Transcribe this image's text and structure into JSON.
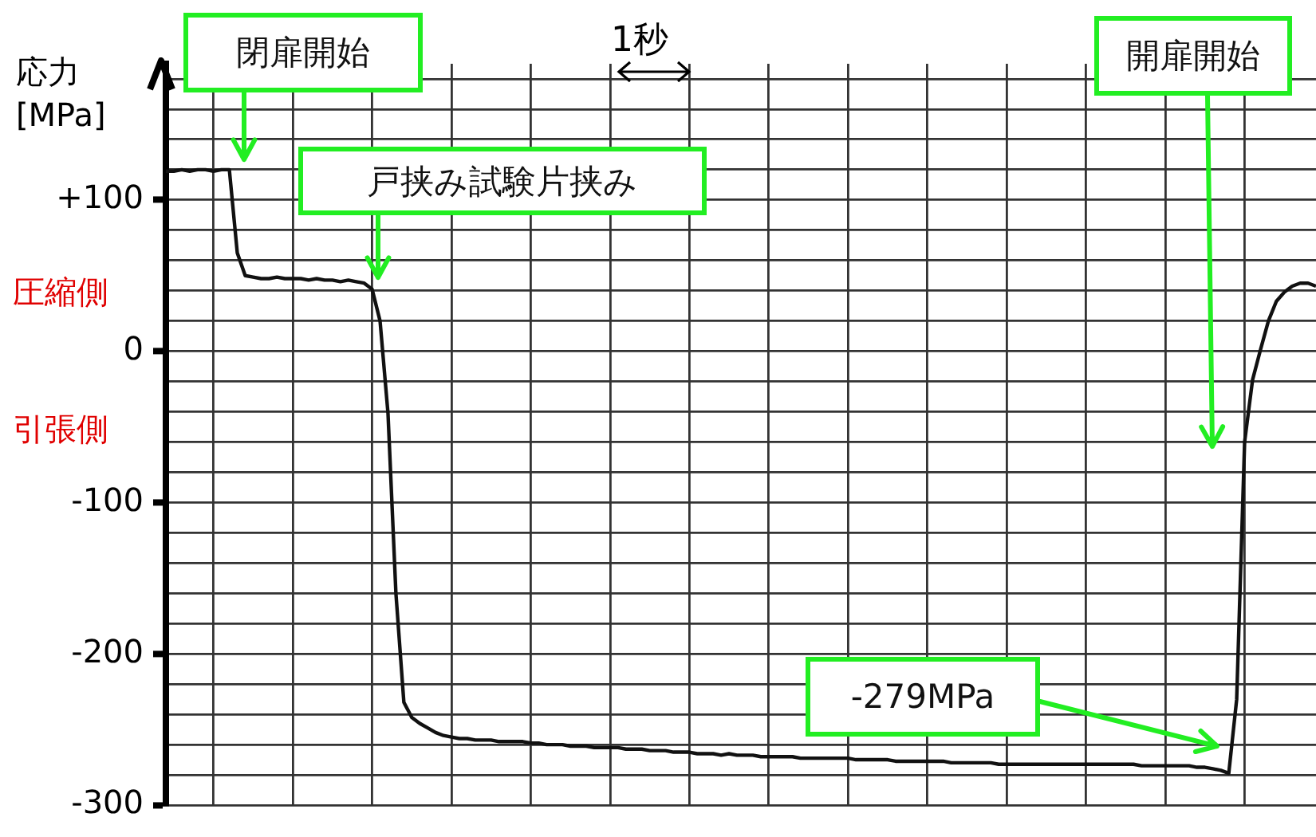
{
  "chart_data": {
    "type": "line",
    "ylabel": "応力\n[MPa]",
    "annotations": [
      "閉扉開始",
      "戸挟み試験片挟み",
      "開扉開始",
      "-279MPa",
      "1秒",
      "圧縮側",
      "引張側"
    ],
    "categories": [
      null,
      null,
      null,
      null,
      null,
      null,
      null,
      null,
      null,
      null,
      null,
      null,
      null,
      null,
      null,
      null,
      null,
      null,
      null,
      null,
      null,
      null,
      null,
      null,
      null,
      null,
      null,
      null,
      null,
      null,
      null,
      null,
      null,
      null,
      null,
      null,
      null,
      null,
      null,
      null,
      null,
      null,
      null,
      null,
      null,
      null,
      null,
      null,
      null,
      null,
      null,
      null,
      null,
      null,
      null,
      null,
      null,
      null,
      null,
      null,
      null,
      null,
      null,
      null,
      null,
      null,
      null,
      null,
      null,
      null,
      null,
      null,
      null,
      null,
      null,
      null,
      null,
      null,
      null,
      null,
      null,
      null,
      null,
      null,
      null,
      null,
      null,
      null,
      null,
      null,
      null,
      null,
      null,
      null,
      null,
      null,
      null,
      null,
      null,
      null,
      null,
      null,
      null,
      null,
      null,
      null,
      null,
      null,
      null,
      null,
      null,
      null,
      null,
      null,
      null,
      null,
      null,
      null,
      null,
      null,
      null,
      null,
      null,
      null,
      null,
      null,
      null,
      null,
      null,
      null,
      null,
      null,
      null,
      null,
      null,
      null,
      null,
      null,
      null,
      null,
      null,
      null,
      null,
      null,
      null,
      null
    ],
    "series": [
      {
        "color": "#111111",
        "values": [
          119,
          119,
          120,
          119,
          120,
          120,
          119,
          120,
          120,
          65,
          50,
          49,
          48,
          48,
          49,
          48,
          48,
          48,
          47,
          48,
          47,
          47,
          46,
          47,
          46,
          45,
          41,
          20,
          -41,
          -160,
          -232,
          -242,
          -246,
          -249,
          -252,
          -254,
          -255,
          -256,
          -256,
          -257,
          -257,
          -257,
          -258,
          -258,
          -258,
          -258,
          -259,
          -259,
          -260,
          -260,
          -260,
          -261,
          -261,
          -261,
          -262,
          -262,
          -262,
          -262,
          -263,
          -263,
          -263,
          -264,
          -264,
          -264,
          -265,
          -265,
          -265,
          -266,
          -266,
          -266,
          -267,
          -266,
          -267,
          -267,
          -267,
          -268,
          -268,
          -268,
          -268,
          -268,
          -269,
          -269,
          -269,
          -269,
          -269,
          -269,
          -269,
          -270,
          -270,
          -270,
          -270,
          -270,
          -271,
          -271,
          -271,
          -271,
          -271,
          -271,
          -271,
          -272,
          -272,
          -272,
          -272,
          -272,
          -272,
          -273,
          -273,
          -273,
          -273,
          -273,
          -273,
          -273,
          -273,
          -273,
          -273,
          -273,
          -273,
          -273,
          -273,
          -273,
          -273,
          -273,
          -273,
          -274,
          -274,
          -274,
          -274,
          -274,
          -274,
          -274,
          -275,
          -275,
          -276,
          -277,
          -279,
          -230,
          -60,
          -19,
          1,
          20,
          33,
          39,
          43,
          45,
          45,
          43
        ]
      }
    ],
    "ylim": [
      -300,
      190
    ],
    "yticks": [
      -300,
      {
        "value": -280,
        "label": null
      },
      {
        "value": -260,
        "label": null
      },
      {
        "value": -240,
        "label": null
      },
      {
        "value": -220,
        "label": null
      },
      -200,
      {
        "value": -180,
        "label": null
      },
      {
        "value": -160,
        "label": null
      },
      {
        "value": -140,
        "label": null
      },
      {
        "value": -120,
        "label": null
      },
      -100,
      {
        "value": -80,
        "label": null
      },
      {
        "value": -60,
        "label": null
      },
      {
        "value": -40,
        "label": null
      },
      {
        "value": -20,
        "label": null
      },
      0,
      {
        "value": 20,
        "label": null
      },
      {
        "value": 40,
        "label": null
      },
      {
        "value": 60,
        "label": null
      },
      {
        "value": 80,
        "label": null
      },
      {
        "value": 100,
        "label": "+100"
      },
      {
        "value": 120,
        "label": null
      },
      {
        "value": 140,
        "label": null
      },
      {
        "value": 160,
        "label": null
      },
      {
        "value": 180,
        "label": null
      }
    ],
    "grid": true,
    "tick_labels": "y"
  }
}
